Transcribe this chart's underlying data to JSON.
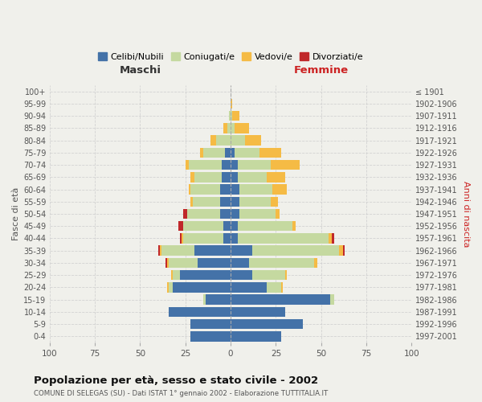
{
  "age_groups": [
    "0-4",
    "5-9",
    "10-14",
    "15-19",
    "20-24",
    "25-29",
    "30-34",
    "35-39",
    "40-44",
    "45-49",
    "50-54",
    "55-59",
    "60-64",
    "65-69",
    "70-74",
    "75-79",
    "80-84",
    "85-89",
    "90-94",
    "95-99",
    "100+"
  ],
  "birth_years": [
    "1997-2001",
    "1992-1996",
    "1987-1991",
    "1982-1986",
    "1977-1981",
    "1972-1976",
    "1967-1971",
    "1962-1966",
    "1957-1961",
    "1952-1956",
    "1947-1951",
    "1942-1946",
    "1937-1941",
    "1932-1936",
    "1927-1931",
    "1922-1926",
    "1917-1921",
    "1912-1916",
    "1907-1911",
    "1902-1906",
    "≤ 1901"
  ],
  "maschi": {
    "celibi": [
      22,
      22,
      34,
      14,
      32,
      28,
      18,
      20,
      4,
      4,
      6,
      6,
      6,
      5,
      5,
      3,
      0,
      0,
      0,
      0,
      0
    ],
    "coniugati": [
      0,
      0,
      0,
      1,
      2,
      4,
      16,
      18,
      22,
      22,
      18,
      15,
      16,
      15,
      18,
      12,
      8,
      2,
      1,
      0,
      0
    ],
    "vedovi": [
      0,
      0,
      0,
      0,
      1,
      1,
      1,
      1,
      1,
      0,
      0,
      1,
      1,
      2,
      2,
      2,
      3,
      2,
      0,
      0,
      0
    ],
    "divorziati": [
      0,
      0,
      0,
      0,
      0,
      0,
      1,
      1,
      1,
      3,
      2,
      0,
      0,
      0,
      0,
      0,
      0,
      0,
      0,
      0,
      0
    ]
  },
  "femmine": {
    "nubili": [
      28,
      40,
      30,
      55,
      20,
      12,
      10,
      12,
      4,
      4,
      5,
      5,
      5,
      4,
      4,
      2,
      0,
      0,
      0,
      0,
      0
    ],
    "coniugate": [
      0,
      0,
      0,
      2,
      8,
      18,
      36,
      48,
      50,
      30,
      20,
      17,
      18,
      16,
      18,
      14,
      8,
      2,
      1,
      0,
      0
    ],
    "vedove": [
      0,
      0,
      0,
      0,
      1,
      1,
      2,
      2,
      2,
      2,
      2,
      4,
      8,
      10,
      16,
      12,
      9,
      8,
      4,
      1,
      0
    ],
    "divorziate": [
      0,
      0,
      0,
      0,
      0,
      0,
      0,
      1,
      1,
      0,
      0,
      0,
      0,
      0,
      0,
      0,
      0,
      0,
      0,
      0,
      0
    ]
  },
  "colors": {
    "celibi": "#4472a8",
    "coniugati": "#c5d9a0",
    "vedovi": "#f5bb45",
    "divorziati": "#c0282a"
  },
  "xlim": 100,
  "xtick_step": 25,
  "title": "Popolazione per età, sesso e stato civile - 2002",
  "subtitle": "COMUNE DI SELEGAS (SU) - Dati ISTAT 1° gennaio 2002 - Elaborazione TUTTITALIA.IT",
  "xlabel_left": "Maschi",
  "xlabel_right": "Femmine",
  "ylabel_left": "Fasce di età",
  "ylabel_right": "Anni di nascita",
  "legend_labels": [
    "Celibi/Nubili",
    "Coniugati/e",
    "Vedovi/e",
    "Divorziati/e"
  ],
  "background_color": "#f0f0eb",
  "bar_height": 0.82
}
